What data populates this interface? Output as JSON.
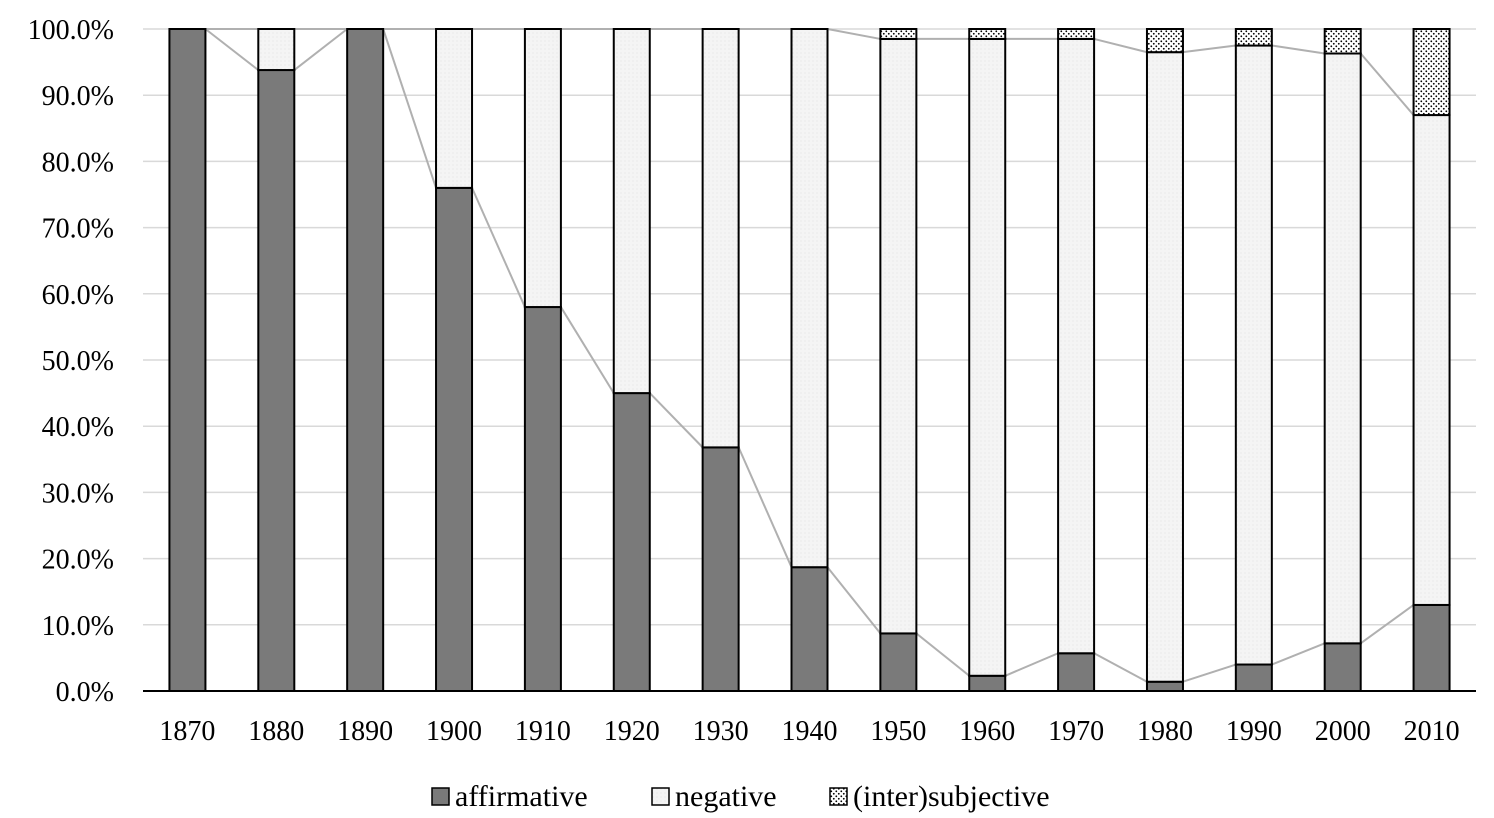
{
  "chart_data": {
    "type": "bar",
    "stacked": true,
    "percent": true,
    "categories": [
      "1870",
      "1880",
      "1890",
      "1900",
      "1910",
      "1920",
      "1930",
      "1940",
      "1950",
      "1960",
      "1970",
      "1980",
      "1990",
      "2000",
      "2010"
    ],
    "series": [
      {
        "name": "affirmative",
        "values": [
          100.0,
          93.8,
          100.0,
          76.0,
          58.0,
          45.0,
          36.8,
          18.7,
          8.7,
          2.3,
          5.7,
          1.4,
          4.0,
          7.2,
          13.0
        ]
      },
      {
        "name": "negative",
        "values": [
          0.0,
          6.2,
          0.0,
          24.0,
          42.0,
          55.0,
          63.2,
          81.3,
          89.8,
          96.2,
          92.8,
          95.1,
          93.5,
          89.1,
          74.0
        ]
      },
      {
        "name": "(inter)subjective",
        "values": [
          0.0,
          0.0,
          0.0,
          0.0,
          0.0,
          0.0,
          0.0,
          0.0,
          1.5,
          1.5,
          1.5,
          3.5,
          2.5,
          3.7,
          13.0
        ]
      }
    ],
    "series_fills": {
      "affirmative": "#7a7a7a",
      "negative": "#f2f2f2",
      "(inter)subjective": "dotted"
    },
    "connector_lines": true,
    "connector_color": "#b0b0b0",
    "ylim": [
      0,
      100
    ],
    "yticks": [
      "0.0%",
      "10.0%",
      "20.0%",
      "30.0%",
      "40.0%",
      "50.0%",
      "60.0%",
      "70.0%",
      "80.0%",
      "90.0%",
      "100.0%"
    ],
    "grid": true,
    "grid_color": "#d9d9d9",
    "legend_position": "bottom",
    "legend": [
      "affirmative",
      "negative",
      "(inter)subjective"
    ]
  }
}
